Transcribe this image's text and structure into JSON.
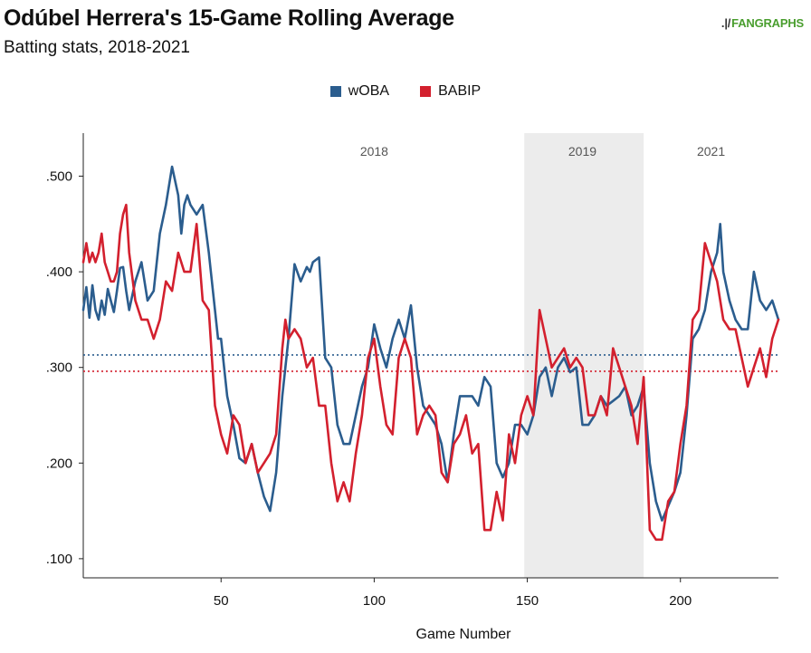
{
  "header": {
    "title": "Odúbel Herrera's 15-Game Rolling Average",
    "subtitle": "Batting stats, 2018-2021",
    "brand": "FANGRAPHS",
    "brand_mark": ".|/"
  },
  "chart_data": {
    "type": "line",
    "title": "Odúbel Herrera's 15-Game Rolling Average",
    "subtitle": "Batting stats, 2018-2021",
    "xlabel": "Game Number",
    "ylabel": "",
    "xlim": [
      5,
      232
    ],
    "ylim": [
      0.08,
      0.545
    ],
    "xticks": [
      50,
      100,
      150,
      200
    ],
    "yticks": [
      0.1,
      0.2,
      0.3,
      0.4,
      0.5
    ],
    "ytick_labels": [
      ".100",
      ".200",
      ".300",
      ".400",
      ".500"
    ],
    "grid": false,
    "legend_position": "top-center",
    "colors": {
      "wOBA": "#2b5d8e",
      "BABIP": "#d3202e",
      "shade": "#ececec",
      "dotted_woba": "#2b5d8e",
      "dotted_babip": "#d3202e"
    },
    "shaded_regions": [
      {
        "label": "2019",
        "x": [
          149,
          188
        ]
      }
    ],
    "region_labels": [
      {
        "text": "2018",
        "x": 100
      },
      {
        "text": "2019",
        "x": 168
      },
      {
        "text": "2021",
        "x": 210
      }
    ],
    "reference_lines": [
      {
        "series": "wOBA",
        "y": 0.313
      },
      {
        "series": "BABIP",
        "y": 0.296
      }
    ],
    "series": [
      {
        "name": "wOBA",
        "x": [
          5,
          6,
          7,
          8,
          9,
          10,
          11,
          12,
          13,
          14,
          15,
          16,
          17,
          18,
          19,
          20,
          22,
          24,
          26,
          28,
          30,
          32,
          34,
          36,
          37,
          38,
          39,
          40,
          42,
          44,
          46,
          48,
          49,
          50,
          52,
          54,
          56,
          58,
          60,
          62,
          64,
          66,
          68,
          70,
          71,
          72,
          74,
          76,
          78,
          79,
          80,
          82,
          84,
          86,
          88,
          90,
          92,
          94,
          96,
          98,
          100,
          102,
          104,
          106,
          108,
          110,
          112,
          114,
          116,
          118,
          120,
          122,
          124,
          126,
          128,
          130,
          132,
          134,
          136,
          138,
          140,
          142,
          144,
          146,
          148,
          150,
          152,
          154,
          156,
          158,
          160,
          162,
          164,
          166,
          168,
          170,
          172,
          174,
          176,
          178,
          180,
          182,
          184,
          186,
          188,
          190,
          192,
          194,
          196,
          198,
          200,
          202,
          204,
          206,
          208,
          210,
          212,
          213,
          214,
          216,
          218,
          220,
          222,
          224,
          226,
          228,
          230,
          232
        ],
        "values": [
          0.36,
          0.384,
          0.352,
          0.386,
          0.36,
          0.35,
          0.37,
          0.355,
          0.382,
          0.37,
          0.358,
          0.38,
          0.404,
          0.405,
          0.38,
          0.36,
          0.39,
          0.41,
          0.37,
          0.38,
          0.44,
          0.47,
          0.51,
          0.48,
          0.44,
          0.47,
          0.48,
          0.47,
          0.46,
          0.47,
          0.42,
          0.36,
          0.33,
          0.33,
          0.27,
          0.24,
          0.205,
          0.2,
          0.22,
          0.19,
          0.165,
          0.15,
          0.19,
          0.27,
          0.3,
          0.33,
          0.408,
          0.39,
          0.405,
          0.4,
          0.41,
          0.415,
          0.31,
          0.3,
          0.24,
          0.22,
          0.22,
          0.25,
          0.28,
          0.3,
          0.345,
          0.32,
          0.3,
          0.33,
          0.35,
          0.33,
          0.365,
          0.3,
          0.26,
          0.25,
          0.24,
          0.22,
          0.18,
          0.23,
          0.27,
          0.27,
          0.27,
          0.26,
          0.29,
          0.28,
          0.2,
          0.185,
          0.2,
          0.24,
          0.24,
          0.23,
          0.25,
          0.29,
          0.3,
          0.27,
          0.3,
          0.31,
          0.295,
          0.3,
          0.24,
          0.24,
          0.25,
          0.27,
          0.26,
          0.265,
          0.27,
          0.28,
          0.25,
          0.26,
          0.28,
          0.2,
          0.16,
          0.14,
          0.155,
          0.17,
          0.19,
          0.25,
          0.33,
          0.34,
          0.36,
          0.4,
          0.42,
          0.45,
          0.4,
          0.37,
          0.35,
          0.34,
          0.34,
          0.4,
          0.37,
          0.36,
          0.37,
          0.35
        ]
      },
      {
        "name": "BABIP",
        "x": [
          5,
          6,
          7,
          8,
          9,
          10,
          11,
          12,
          13,
          14,
          15,
          16,
          17,
          18,
          19,
          20,
          22,
          24,
          26,
          28,
          30,
          32,
          34,
          36,
          38,
          40,
          42,
          44,
          46,
          48,
          50,
          52,
          54,
          56,
          58,
          60,
          62,
          64,
          66,
          68,
          70,
          71,
          72,
          74,
          76,
          78,
          80,
          82,
          84,
          86,
          88,
          90,
          92,
          94,
          96,
          98,
          100,
          102,
          104,
          106,
          108,
          110,
          112,
          114,
          116,
          118,
          120,
          122,
          124,
          126,
          128,
          130,
          132,
          134,
          136,
          138,
          140,
          142,
          144,
          146,
          148,
          150,
          152,
          154,
          156,
          158,
          160,
          162,
          164,
          166,
          168,
          170,
          172,
          174,
          176,
          178,
          180,
          182,
          184,
          186,
          188,
          190,
          192,
          194,
          196,
          198,
          200,
          202,
          204,
          206,
          208,
          210,
          212,
          214,
          216,
          218,
          220,
          222,
          224,
          226,
          228,
          230,
          232
        ],
        "values": [
          0.41,
          0.43,
          0.41,
          0.42,
          0.41,
          0.42,
          0.44,
          0.41,
          0.4,
          0.39,
          0.39,
          0.4,
          0.44,
          0.46,
          0.47,
          0.42,
          0.37,
          0.35,
          0.35,
          0.33,
          0.35,
          0.39,
          0.38,
          0.42,
          0.4,
          0.4,
          0.45,
          0.37,
          0.36,
          0.26,
          0.23,
          0.21,
          0.25,
          0.24,
          0.2,
          0.22,
          0.19,
          0.2,
          0.21,
          0.23,
          0.32,
          0.35,
          0.33,
          0.34,
          0.33,
          0.3,
          0.31,
          0.26,
          0.26,
          0.2,
          0.16,
          0.18,
          0.16,
          0.21,
          0.25,
          0.31,
          0.33,
          0.28,
          0.24,
          0.23,
          0.31,
          0.33,
          0.31,
          0.23,
          0.25,
          0.26,
          0.25,
          0.19,
          0.18,
          0.22,
          0.23,
          0.25,
          0.21,
          0.22,
          0.13,
          0.13,
          0.17,
          0.14,
          0.23,
          0.2,
          0.25,
          0.27,
          0.25,
          0.36,
          0.33,
          0.3,
          0.31,
          0.32,
          0.3,
          0.31,
          0.3,
          0.25,
          0.25,
          0.27,
          0.25,
          0.32,
          0.3,
          0.28,
          0.26,
          0.22,
          0.29,
          0.13,
          0.12,
          0.12,
          0.16,
          0.17,
          0.22,
          0.26,
          0.35,
          0.36,
          0.43,
          0.41,
          0.39,
          0.35,
          0.34,
          0.34,
          0.31,
          0.28,
          0.3,
          0.32,
          0.29,
          0.33,
          0.35
        ]
      }
    ]
  }
}
